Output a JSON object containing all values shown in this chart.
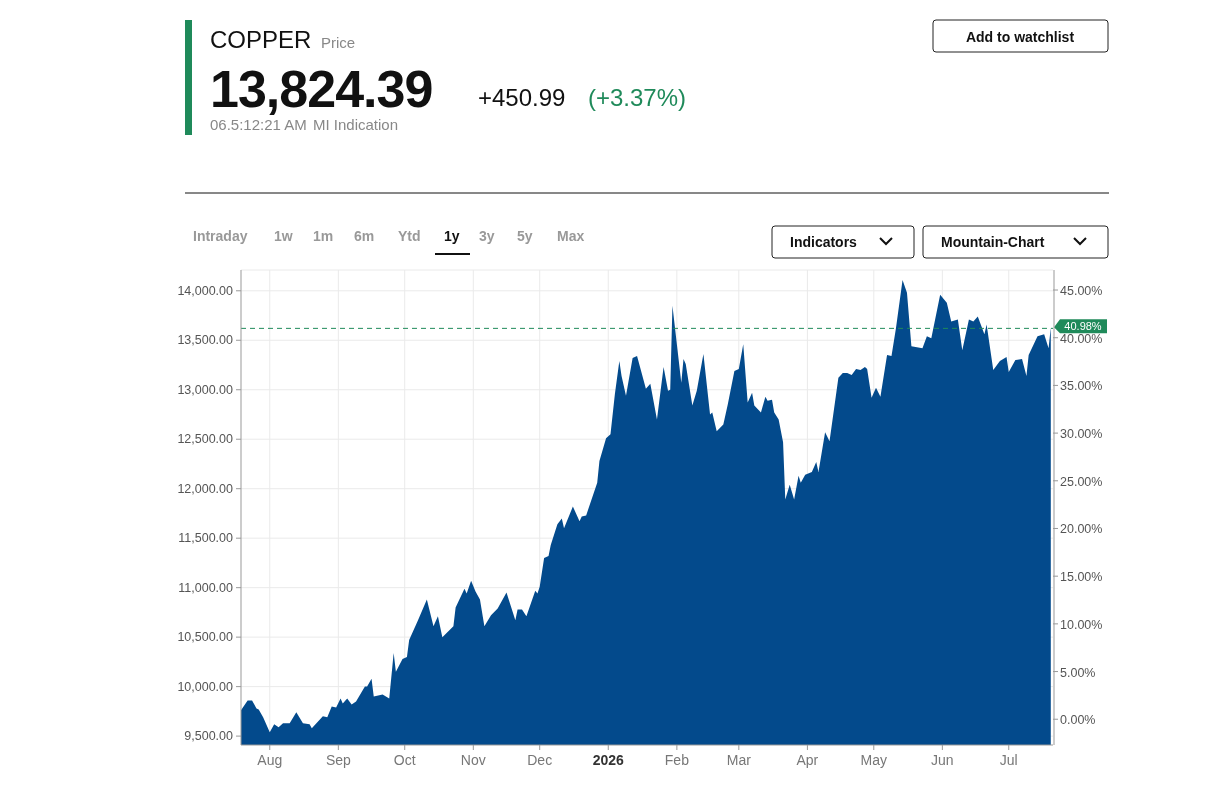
{
  "chart_data": {
    "type": "area",
    "title": "COPPER",
    "subtitle": "Price",
    "annotations": [
      "13,824.39",
      "+450.99",
      "(+3.37%)",
      "06.5:12:21 AM",
      "MI Indication",
      "Add to watchlist",
      "Intraday",
      "1w",
      "1m",
      "6m",
      "Ytd",
      "1y",
      "3y",
      "5y",
      "Max",
      "Indicators",
      "Mountain-Chart"
    ],
    "x": [
      "2025-07-19",
      "2025-07-22",
      "2025-07-24",
      "2025-07-26",
      "2025-07-27",
      "2025-07-29",
      "2025-08-01",
      "2025-08-03",
      "2025-08-05",
      "2025-08-07",
      "2025-08-10",
      "2025-08-13",
      "2025-08-16",
      "2025-08-19",
      "2025-08-20",
      "2025-08-25",
      "2025-08-27",
      "2025-08-29",
      "2025-08-31",
      "2025-09-02",
      "2025-09-03",
      "2025-09-05",
      "2025-09-07",
      "2025-09-09",
      "2025-09-13",
      "2025-09-14",
      "2025-09-16",
      "2025-09-17",
      "2025-09-21",
      "2025-09-24",
      "2025-09-26",
      "2025-09-27",
      "2025-09-30",
      "2025-10-02",
      "2025-10-03",
      "2025-10-07",
      "2025-10-11",
      "2025-10-14",
      "2025-10-16",
      "2025-10-18",
      "2025-10-23",
      "2025-10-24",
      "2025-10-28",
      "2025-10-29",
      "2025-10-31",
      "2025-11-02",
      "2025-11-04",
      "2025-11-06",
      "2025-11-09",
      "2025-11-12",
      "2025-11-16",
      "2025-11-17",
      "2025-11-20",
      "2025-11-21",
      "2025-11-23",
      "2025-11-25",
      "2025-11-29",
      "2025-11-30",
      "2025-12-01",
      "2025-12-03",
      "2025-12-05",
      "2025-12-06",
      "2025-12-09",
      "2025-12-11",
      "2025-12-12",
      "2025-12-16",
      "2025-12-19",
      "2025-12-20",
      "2025-12-22",
      "2025-12-27",
      "2025-12-28",
      "2025-12-31",
      "2026-01-02",
      "2026-01-04",
      "2026-01-06",
      "2026-01-07",
      "2026-01-09",
      "2026-01-12",
      "2026-01-14",
      "2026-01-18",
      "2026-01-20",
      "2026-01-23",
      "2026-01-26",
      "2026-01-28",
      "2026-01-29",
      "2026-01-30",
      "2026-02-03",
      "2026-02-04",
      "2026-02-05",
      "2026-02-08",
      "2026-02-10",
      "2026-02-13",
      "2026-02-16",
      "2026-02-17",
      "2026-02-19",
      "2026-02-22",
      "2026-02-24",
      "2026-02-27",
      "2026-03-01",
      "2026-03-03",
      "2026-03-05",
      "2026-03-07",
      "2026-03-08",
      "2026-03-11",
      "2026-03-13",
      "2026-03-14",
      "2026-03-16",
      "2026-03-17",
      "2026-03-19",
      "2026-03-21",
      "2026-03-22",
      "2026-03-24",
      "2026-03-26",
      "2026-03-28",
      "2026-03-29",
      "2026-03-31",
      "2026-04-03",
      "2026-04-05",
      "2026-04-06",
      "2026-04-09",
      "2026-04-11",
      "2026-04-15",
      "2026-04-17",
      "2026-04-19",
      "2026-04-21",
      "2026-04-23",
      "2026-04-25",
      "2026-04-27",
      "2026-04-28",
      "2026-04-30",
      "2026-05-02",
      "2026-05-04",
      "2026-05-07",
      "2026-05-09",
      "2026-05-11",
      "2026-05-14",
      "2026-05-16",
      "2026-05-18",
      "2026-05-23",
      "2026-05-25",
      "2026-05-27",
      "2026-05-31",
      "2026-06-03",
      "2026-06-05",
      "2026-06-08",
      "2026-06-10",
      "2026-06-13",
      "2026-06-15",
      "2026-06-17",
      "2026-06-20",
      "2026-06-21",
      "2026-06-24",
      "2026-06-27",
      "2026-06-30",
      "2026-07-01",
      "2026-07-04",
      "2026-07-07",
      "2026-07-09",
      "2026-07-10",
      "2026-07-14",
      "2026-07-17",
      "2026-07-19",
      "2026-07-20"
    ],
    "series": [
      {
        "color": "#034a8c",
        "values": [
          9760,
          9860,
          9860,
          9780,
          9770,
          9690,
          9540,
          9620,
          9590,
          9630,
          9630,
          9740,
          9630,
          9620,
          9580,
          9700,
          9690,
          9800,
          9790,
          9880,
          9830,
          9880,
          9820,
          9850,
          10000,
          10000,
          10080,
          9900,
          9920,
          9880,
          10340,
          10150,
          10280,
          10300,
          10470,
          10670,
          10880,
          10610,
          10710,
          10500,
          10610,
          10800,
          10990,
          10940,
          11070,
          10960,
          10880,
          10610,
          10720,
          10790,
          10950,
          10880,
          10670,
          10780,
          10780,
          10710,
          10970,
          10940,
          11010,
          11300,
          11320,
          11430,
          11640,
          11700,
          11600,
          11820,
          11670,
          11720,
          11730,
          12060,
          12280,
          12510,
          12550,
          12960,
          13290,
          13140,
          12940,
          13320,
          13340,
          13010,
          13060,
          12700,
          13230,
          12990,
          13000,
          13850,
          13070,
          13310,
          13260,
          12840,
          12990,
          13360,
          12750,
          12770,
          12580,
          12650,
          12850,
          13190,
          13210,
          13460,
          12870,
          12970,
          12840,
          12770,
          12930,
          12890,
          12900,
          12770,
          12700,
          12470,
          11890,
          12040,
          11890,
          12130,
          12060,
          12140,
          12170,
          12270,
          12170,
          12570,
          12480,
          13120,
          13170,
          13170,
          13150,
          13210,
          13200,
          13230,
          13210,
          12920,
          13020,
          12930,
          13350,
          13340,
          13620,
          14110,
          13980,
          13440,
          13420,
          13540,
          13520,
          13960,
          13880,
          13690,
          13710,
          13400,
          13710,
          13690,
          13740,
          13560,
          13660,
          13200,
          13290,
          13330,
          13180,
          13300,
          13310,
          13140,
          13350,
          13540,
          13560,
          13420,
          13630
        ]
      }
    ],
    "xlim": [
      "2025-07-19",
      "2026-07-21"
    ],
    "xticks": [
      {
        "value": "2025-08-01",
        "label": "Aug"
      },
      {
        "value": "2025-09-01",
        "label": "Sep"
      },
      {
        "value": "2025-10-01",
        "label": "Oct"
      },
      {
        "value": "2025-11-01",
        "label": "Nov"
      },
      {
        "value": "2025-12-01",
        "label": "Dec"
      },
      {
        "value": "2026-01-01",
        "label": "2026"
      },
      {
        "value": "2026-02-01",
        "label": "Feb"
      },
      {
        "value": "2026-03-01",
        "label": "Mar"
      },
      {
        "value": "2026-04-01",
        "label": "Apr"
      },
      {
        "value": "2026-05-01",
        "label": "May"
      },
      {
        "value": "2026-06-01",
        "label": "Jun"
      },
      {
        "value": "2026-07-01",
        "label": "Jul"
      }
    ],
    "ylim": [
      9410,
      14210
    ],
    "yticks": [
      {
        "value": 9500,
        "label": "9,500.00"
      },
      {
        "value": 10000,
        "label": "10,000.00"
      },
      {
        "value": 10500,
        "label": "10,500.00"
      },
      {
        "value": 11000,
        "label": "11,000.00"
      },
      {
        "value": 11500,
        "label": "11,500.00"
      },
      {
        "value": 12000,
        "label": "12,000.00"
      },
      {
        "value": 12500,
        "label": "12,500.00"
      },
      {
        "value": 13000,
        "label": "13,000.00"
      },
      {
        "value": 13500,
        "label": "13,500.00"
      },
      {
        "value": 14000,
        "label": "14,000.00"
      }
    ],
    "y2lim": [
      -2.7,
      47.1
    ],
    "y2ticks": [
      {
        "value": 0,
        "label": "0.00%"
      },
      {
        "value": 5,
        "label": "5.00%"
      },
      {
        "value": 10,
        "label": "10.00%"
      },
      {
        "value": 15,
        "label": "15.00%"
      },
      {
        "value": 20,
        "label": "20.00%"
      },
      {
        "value": 25,
        "label": "25.00%"
      },
      {
        "value": 30,
        "label": "30.00%"
      },
      {
        "value": 35,
        "label": "35.00%"
      },
      {
        "value": 40,
        "label": "40.00%"
      },
      {
        "value": 45,
        "label": "45.00%"
      }
    ],
    "ref_lines": [
      {
        "axis": "y2",
        "value": 40.98,
        "label": "40.98%",
        "color": "#1f8a5a",
        "line_style": "dashed"
      }
    ],
    "grid": true
  }
}
